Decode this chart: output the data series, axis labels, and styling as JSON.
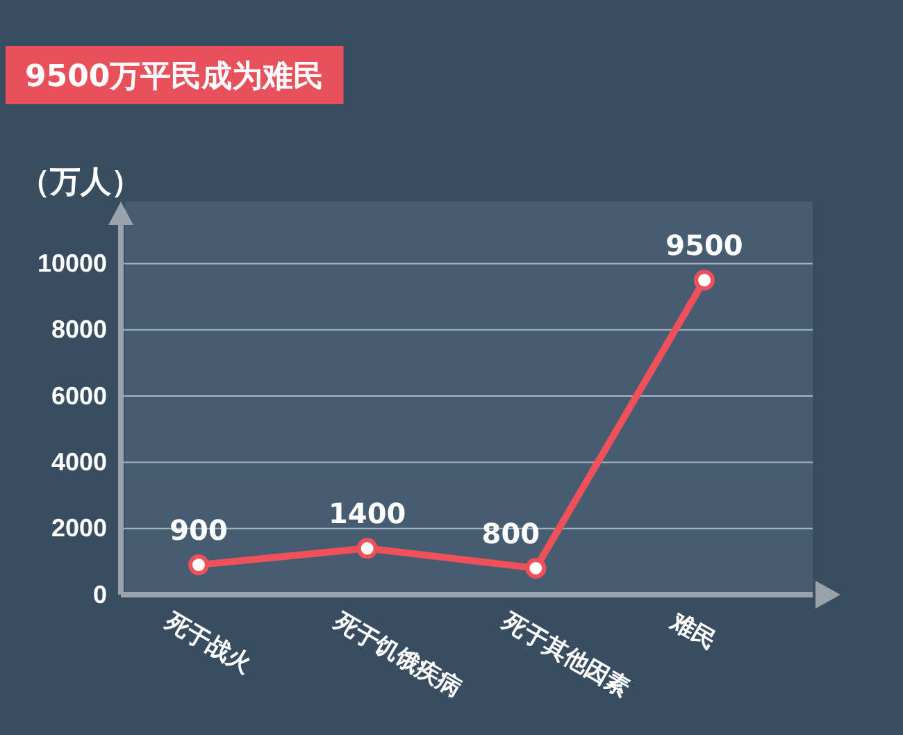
{
  "chart_data": {
    "type": "line",
    "title": "9500万平民成为难民",
    "ylabel": "（万人）",
    "categories": [
      "死于战火",
      "死于饥饿疾病",
      "死于其他因素",
      "难民"
    ],
    "series": [
      {
        "color": "#f0505a",
        "values": [
          900,
          1400,
          800,
          9500
        ]
      }
    ],
    "ylim": [
      0,
      11500
    ],
    "yticks": [
      0,
      2000,
      4000,
      6000,
      8000,
      10000
    ],
    "grid": "y",
    "marker": "circle",
    "line_style": "solid",
    "data_labels": true
  }
}
